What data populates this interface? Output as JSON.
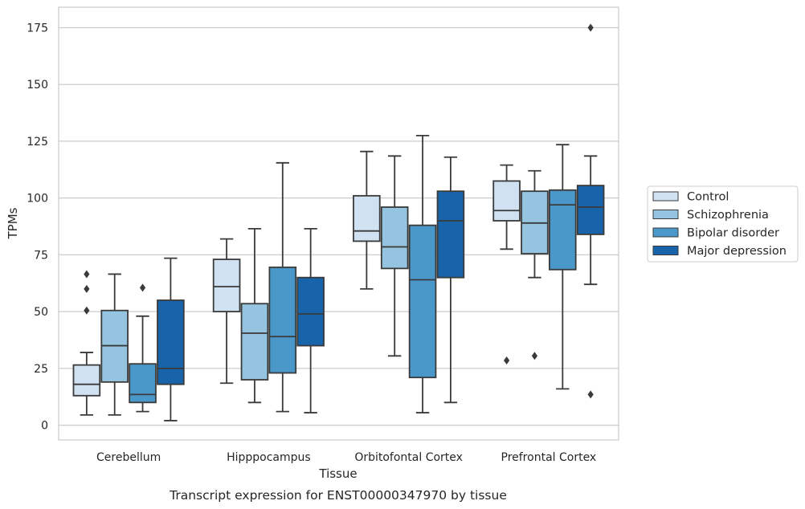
{
  "chart_data": {
    "type": "box",
    "xlabel": "Tissue",
    "ylabel": "TPMs",
    "caption": "Transcript expression for ENST00000347970 by tissue",
    "ylim": [
      -6.5,
      184
    ],
    "yticks": [
      0,
      25,
      50,
      75,
      100,
      125,
      150,
      175
    ],
    "grid": "horizontal",
    "legend_position": "right",
    "categories": [
      "Cerebellum",
      "Hipppocampus",
      "Orbitofontal Cortex",
      "Prefrontal Cortex"
    ],
    "series": [
      {
        "name": "Control",
        "color": "#d0e1f2",
        "boxes": [
          {
            "whisker_low": 4.5,
            "q1": 13,
            "median": 18,
            "q3": 26.5,
            "whisker_high": 32,
            "outliers": [
              50.5,
              60,
              66.5
            ]
          },
          {
            "whisker_low": 18.5,
            "q1": 50,
            "median": 61,
            "q3": 73,
            "whisker_high": 82,
            "outliers": []
          },
          {
            "whisker_low": 60,
            "q1": 81,
            "median": 85.5,
            "q3": 101,
            "whisker_high": 120.5,
            "outliers": []
          },
          {
            "whisker_low": 77.5,
            "q1": 90,
            "median": 94.5,
            "q3": 107.5,
            "whisker_high": 114.5,
            "outliers": [
              28.5
            ]
          }
        ]
      },
      {
        "name": "Schizophrenia",
        "color": "#94c4df",
        "boxes": [
          {
            "whisker_low": 4.5,
            "q1": 19,
            "median": 35,
            "q3": 50.5,
            "whisker_high": 66.5,
            "outliers": []
          },
          {
            "whisker_low": 10,
            "q1": 20,
            "median": 40.5,
            "q3": 53.5,
            "whisker_high": 86.5,
            "outliers": []
          },
          {
            "whisker_low": 30.5,
            "q1": 69,
            "median": 78.5,
            "q3": 96,
            "whisker_high": 118.5,
            "outliers": []
          },
          {
            "whisker_low": 65,
            "q1": 75.5,
            "median": 89,
            "q3": 103,
            "whisker_high": 112,
            "outliers": [
              30.5
            ]
          }
        ]
      },
      {
        "name": "Bipolar disorder",
        "color": "#4a98c9",
        "boxes": [
          {
            "whisker_low": 6,
            "q1": 10,
            "median": 13.5,
            "q3": 27,
            "whisker_high": 48,
            "outliers": [
              60.5
            ]
          },
          {
            "whisker_low": 6,
            "q1": 23,
            "median": 39,
            "q3": 69.5,
            "whisker_high": 115.5,
            "outliers": []
          },
          {
            "whisker_low": 5.5,
            "q1": 21,
            "median": 64,
            "q3": 88,
            "whisker_high": 127.5,
            "outliers": []
          },
          {
            "whisker_low": 16,
            "q1": 68.5,
            "median": 97,
            "q3": 103.5,
            "whisker_high": 123.5,
            "outliers": []
          }
        ]
      },
      {
        "name": "Major depression",
        "color": "#1764ab",
        "boxes": [
          {
            "whisker_low": 2,
            "q1": 18,
            "median": 25,
            "q3": 55,
            "whisker_high": 73.5,
            "outliers": []
          },
          {
            "whisker_low": 5.5,
            "q1": 35,
            "median": 49,
            "q3": 65,
            "whisker_high": 86.5,
            "outliers": []
          },
          {
            "whisker_low": 10,
            "q1": 65,
            "median": 90,
            "q3": 103,
            "whisker_high": 118,
            "outliers": []
          },
          {
            "whisker_low": 62,
            "q1": 84,
            "median": 96,
            "q3": 105.5,
            "whisker_high": 118.5,
            "outliers": [
              13.5,
              175
            ]
          }
        ]
      }
    ]
  }
}
